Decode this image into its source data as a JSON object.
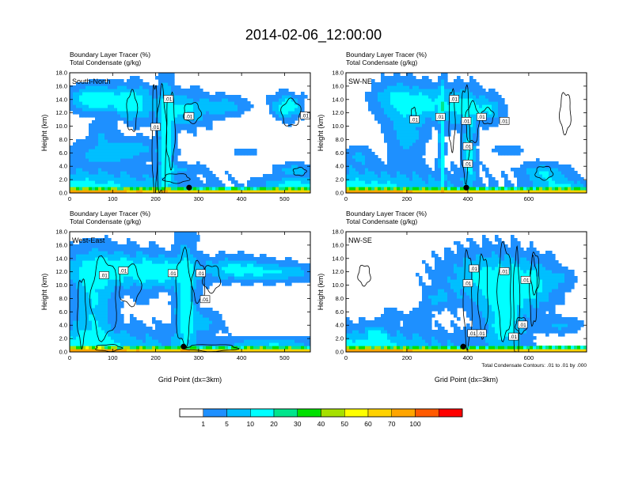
{
  "chart_data": {
    "type": "heatmap",
    "title": "2014-02-06_12:00:00",
    "fill_variable": "Boundary Layer Tracer",
    "fill_units": "(%)",
    "contour_variable": "Total Condensate",
    "contour_units": "(g/kg)",
    "contour_note": "Total Condensate Contours: .01 to .01 by .000",
    "contour_label": ".01",
    "xlabel": "Grid Point (dx=3km)",
    "ylabel": "Height (km)",
    "colorbar": {
      "levels": [
        "1",
        "5",
        "10",
        "20",
        "30",
        "40",
        "50",
        "60",
        "70",
        "100"
      ],
      "colors": [
        "#ffffff",
        "#1e90ff",
        "#00bfff",
        "#00ffff",
        "#00e58c",
        "#00e000",
        "#a6e000",
        "#ffff00",
        "#ffd200",
        "#ffa500",
        "#ff5a00",
        "#ff0000"
      ]
    },
    "panels": [
      {
        "name": "South-North",
        "xlim": [
          0,
          560
        ],
        "ylim": [
          0,
          18
        ],
        "xticks": [
          "0",
          "100",
          "200",
          "300",
          "400",
          "500"
        ],
        "yticks": [
          "0.0",
          "2.0",
          "4.0",
          "6.0",
          "8.0",
          "10.0",
          "12.0",
          "14.0",
          "16.0",
          "18.0"
        ],
        "marker_x": 278,
        "labels": [
          [
            230,
            14.1
          ],
          [
            200,
            9.9
          ],
          [
            278,
            11.5
          ],
          [
            548,
            11.6
          ]
        ],
        "field": [
          [
            2,
            0,
            230,
            3,
            15,
            0.8
          ],
          [
            48,
            14.2,
            40,
            1.5,
            12,
            0.6
          ],
          [
            95,
            14,
            60,
            1.8,
            10,
            0.6
          ],
          [
            150,
            13.5,
            35,
            2.2,
            12,
            0.9
          ],
          [
            260,
            12.5,
            55,
            2.2,
            11,
            0.8
          ],
          [
            120,
            6.7,
            90,
            1.3,
            8,
            0.5
          ],
          [
            85,
            5.3,
            50,
            0.8,
            6,
            0.3
          ],
          [
            75,
            9,
            25,
            1.5,
            5,
            0.3
          ],
          [
            225,
            8,
            14,
            8,
            14,
            0.7
          ],
          [
            355,
            13,
            45,
            1.2,
            9,
            0.3
          ],
          [
            505,
            13,
            28,
            1.5,
            16,
            0.8
          ],
          [
            250,
            3.6,
            45,
            0.7,
            5,
            0.3
          ],
          [
            520,
            3.5,
            35,
            0.8,
            8,
            0.3
          ],
          [
            410,
            6.2,
            35,
            0.6,
            2,
            0.2
          ],
          [
            520,
            1.2,
            60,
            1,
            14,
            0.5
          ]
        ],
        "contours": [
          [
            198,
            8,
            6,
            8.5
          ],
          [
            214,
            7.5,
            11,
            8
          ],
          [
            235,
            9.5,
            10,
            5.5
          ],
          [
            145,
            12.2,
            12,
            3
          ],
          [
            285,
            12,
            20,
            1.5
          ],
          [
            248,
            2.2,
            30,
            0.7
          ],
          [
            515,
            12,
            22,
            2
          ],
          [
            535,
            3.2,
            15,
            0.6
          ]
        ]
      },
      {
        "name": "SW-NE",
        "xlim": [
          0,
          790
        ],
        "ylim": [
          0,
          18
        ],
        "xticks": [
          "0",
          "200",
          "400",
          "600"
        ],
        "yticks": [
          "0.0",
          "2.0",
          "4.0",
          "6.0",
          "8.0",
          "10.0",
          "12.0",
          "14.0",
          "16.0",
          "18.0"
        ],
        "marker_x": 395,
        "labels": [
          [
            355,
            14.1
          ],
          [
            225,
            11
          ],
          [
            310,
            11.4
          ],
          [
            445,
            11.4
          ],
          [
            395,
            10.8
          ],
          [
            400,
            7
          ],
          [
            400,
            4.4
          ],
          [
            520,
            10.8
          ]
        ],
        "field": [
          [
            2,
            0,
            320,
            3,
            15,
            0.8
          ],
          [
            160,
            14,
            60,
            2.5,
            10,
            0.6
          ],
          [
            250,
            13.5,
            70,
            2.2,
            12,
            0.7
          ],
          [
            380,
            13,
            70,
            2.5,
            12,
            0.8
          ],
          [
            470,
            12.5,
            40,
            1.5,
            9,
            0.5
          ],
          [
            200,
            9,
            50,
            3,
            8,
            0.4
          ],
          [
            315,
            8,
            7,
            9,
            16,
            1
          ],
          [
            405,
            6,
            18,
            5,
            12,
            0.5
          ],
          [
            40,
            5.5,
            35,
            1.2,
            6,
            0.3
          ],
          [
            650,
            3,
            60,
            1.2,
            11,
            0.4
          ],
          [
            530,
            6.5,
            50,
            0.8,
            3,
            0.2
          ],
          [
            700,
            1,
            80,
            1,
            12,
            0.5
          ]
        ],
        "contours": [
          [
            392,
            9,
            14,
            7
          ],
          [
            348,
            11,
            10,
            4.5
          ],
          [
            415,
            10.5,
            22,
            3
          ],
          [
            465,
            11.5,
            20,
            1.2
          ],
          [
            720,
            12,
            18,
            3
          ],
          [
            650,
            3,
            28,
            1
          ],
          [
            222,
            11.8,
            8,
            1
          ]
        ]
      },
      {
        "name": "West-East",
        "xlim": [
          0,
          560
        ],
        "ylim": [
          0,
          18
        ],
        "xticks": [
          "0",
          "100",
          "200",
          "300",
          "400",
          "500"
        ],
        "yticks": [
          "0.0",
          "2.0",
          "4.0",
          "6.0",
          "8.0",
          "10.0",
          "12.0",
          "14.0",
          "16.0",
          "18.0"
        ],
        "marker_x": 265,
        "labels": [
          [
            80,
            11.5
          ],
          [
            125,
            12.2
          ],
          [
            240,
            11.8
          ],
          [
            305,
            11.8
          ],
          [
            315,
            7.9
          ]
        ],
        "field": [
          [
            2,
            0,
            220,
            3,
            15,
            0.8
          ],
          [
            90,
            12.5,
            100,
            2.5,
            12,
            0.8
          ],
          [
            210,
            12,
            70,
            2,
            12,
            0.7
          ],
          [
            380,
            12.5,
            70,
            1.5,
            11,
            0.6
          ],
          [
            480,
            12,
            80,
            1.2,
            9,
            0.5
          ],
          [
            55,
            7,
            40,
            6,
            10,
            0.4
          ],
          [
            270,
            7,
            20,
            8,
            14,
            0.9
          ],
          [
            170,
            8.2,
            15,
            1,
            3,
            0.2
          ],
          [
            310,
            4.5,
            35,
            1.5,
            7,
            0.3
          ],
          [
            470,
            1.2,
            90,
            0.8,
            10,
            0.4
          ]
        ],
        "contours": [
          [
            80,
            8,
            30,
            6
          ],
          [
            28,
            6,
            10,
            5
          ],
          [
            140,
            10,
            25,
            3
          ],
          [
            265,
            8,
            18,
            7
          ],
          [
            300,
            10.5,
            15,
            3
          ],
          [
            330,
            11,
            20,
            2
          ],
          [
            90,
            0.6,
            30,
            0.5
          ],
          [
            330,
            0.6,
            60,
            0.5
          ]
        ]
      },
      {
        "name": "NW-SE",
        "xlim": [
          0,
          790
        ],
        "ylim": [
          0,
          18
        ],
        "xticks": [
          "0",
          "200",
          "400",
          "600"
        ],
        "yticks": [
          "0.0",
          "2.0",
          "4.0",
          "6.0",
          "8.0",
          "10.0",
          "12.0",
          "14.0",
          "16.0",
          "18.0"
        ],
        "marker_x": 385,
        "labels": [
          [
            420,
            12.5
          ],
          [
            520,
            12.1
          ],
          [
            400,
            10.3
          ],
          [
            590,
            10.8
          ],
          [
            580,
            4.1
          ],
          [
            415,
            2.8
          ],
          [
            445,
            2.8
          ],
          [
            550,
            2.3
          ]
        ],
        "field": [
          [
            2,
            0,
            320,
            2.8,
            15,
            0.8
          ],
          [
            470,
            11,
            130,
            3.5,
            12,
            0.8
          ],
          [
            520,
            5,
            60,
            5,
            13,
            0.8
          ],
          [
            610,
            10,
            70,
            3,
            10,
            0.5
          ],
          [
            300,
            8,
            35,
            1.3,
            6,
            0.3
          ],
          [
            240,
            5,
            30,
            1.2,
            4,
            0.2
          ],
          [
            150,
            5.5,
            30,
            1,
            3,
            0.2
          ],
          [
            700,
            4,
            60,
            1,
            6,
            0.2
          ],
          [
            700,
            11,
            40,
            1.2,
            5,
            0.2
          ],
          [
            100,
            2.5,
            30,
            1.2,
            10,
            0.4
          ]
        ],
        "contours": [
          [
            400,
            8,
            14,
            7
          ],
          [
            450,
            8.5,
            16,
            6
          ],
          [
            520,
            9,
            22,
            7
          ],
          [
            560,
            7,
            10,
            8
          ],
          [
            615,
            9,
            12,
            5
          ],
          [
            60,
            11.5,
            20,
            1.5
          ],
          [
            620,
            11.8,
            14,
            3
          ],
          [
            575,
            4,
            18,
            1.2
          ]
        ]
      }
    ]
  }
}
